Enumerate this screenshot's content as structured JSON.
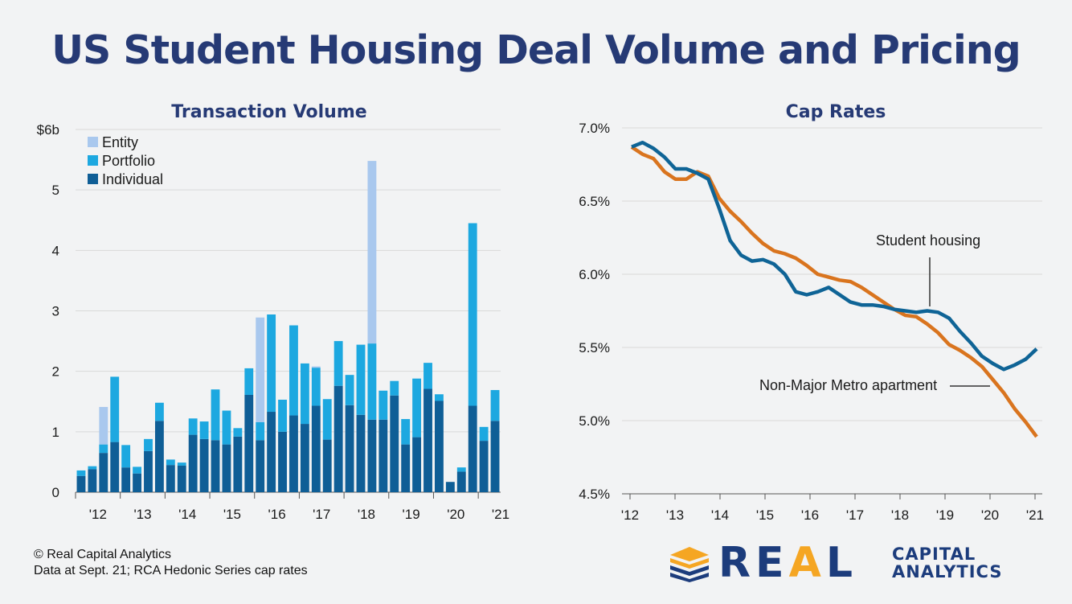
{
  "title": "US Student Housing Deal Volume and Pricing",
  "footer": {
    "line1": "© Real Capital Analytics",
    "line2": "Data at Sept. 21; RCA Hedonic Series cap rates"
  },
  "logo": {
    "word_a": "RE",
    "word_b": "A",
    "word_c": "L",
    "sub1": "CAPITAL",
    "sub2": "ANALYTICS"
  },
  "colors": {
    "entity": "#a9c8ee",
    "portfolio": "#1da8e0",
    "individual": "#0f5e96",
    "student": "#0f6496",
    "nonmajor": "#d9741e",
    "title": "#263a75",
    "grid": "#d9d9d9"
  },
  "chart_data": [
    {
      "type": "bar",
      "stacked": true,
      "title": "Transaction Volume",
      "y_tick_labels": [
        "0",
        "1",
        "2",
        "3",
        "4",
        "5",
        "$6b"
      ],
      "ylim": [
        0,
        6
      ],
      "x_tick_labels": [
        "'12",
        "'13",
        "'14",
        "'15",
        "'16",
        "'17",
        "'18",
        "'19",
        "'20",
        "'21"
      ],
      "legend_position": "top-left",
      "legend": [
        "Entity",
        "Portfolio",
        "Individual"
      ],
      "series": [
        {
          "name": "Individual",
          "values": [
            0.27,
            0.38,
            0.65,
            0.83,
            0.41,
            0.31,
            0.68,
            1.18,
            0.45,
            0.44,
            0.95,
            0.88,
            0.86,
            0.79,
            0.92,
            1.61,
            0.86,
            1.33,
            1.0,
            1.27,
            1.13,
            1.43,
            0.87,
            1.76,
            1.44,
            1.28,
            1.2,
            1.2,
            1.6,
            0.79,
            0.91,
            1.71,
            1.51,
            0.17,
            0.34,
            1.43,
            0.85,
            1.18
          ]
        },
        {
          "name": "Portfolio",
          "values": [
            0.09,
            0.05,
            0.14,
            1.08,
            0.37,
            0.11,
            0.2,
            0.3,
            0.09,
            0.05,
            0.27,
            0.29,
            0.84,
            0.56,
            0.14,
            0.44,
            0.3,
            1.61,
            0.53,
            1.49,
            1.0,
            0.63,
            0.67,
            0.74,
            0.5,
            1.16,
            1.26,
            0.48,
            0.24,
            0.42,
            0.97,
            0.43,
            0.11,
            0.0,
            0.07,
            3.02,
            0.23,
            0.51
          ]
        },
        {
          "name": "Entity",
          "values": [
            0,
            0,
            0.62,
            0,
            0,
            0,
            0,
            0,
            0,
            0,
            0,
            0,
            0,
            0,
            0,
            0,
            1.73,
            0,
            0,
            0,
            0,
            0.02,
            0,
            0,
            0,
            0,
            3.02,
            0,
            0,
            0,
            0,
            0,
            0,
            0,
            0,
            0,
            0,
            0
          ]
        }
      ]
    },
    {
      "type": "line",
      "title": "Cap Rates",
      "y_tick_labels": [
        "4.5%",
        "5.0%",
        "5.5%",
        "6.0%",
        "6.5%",
        "7.0%"
      ],
      "ylim": [
        4.5,
        7.0
      ],
      "x_tick_labels": [
        "'12",
        "'13",
        "'14",
        "'15",
        "'16",
        "'17",
        "'18",
        "'19",
        "'20",
        "'21"
      ],
      "series": [
        {
          "name": "Student housing",
          "values": [
            6.87,
            6.9,
            6.86,
            6.8,
            6.72,
            6.72,
            6.69,
            6.65,
            6.45,
            6.23,
            6.13,
            6.09,
            6.1,
            6.07,
            6.0,
            5.88,
            5.86,
            5.88,
            5.91,
            5.86,
            5.81,
            5.79,
            5.79,
            5.78,
            5.76,
            5.75,
            5.74,
            5.75,
            5.74,
            5.7,
            5.61,
            5.53,
            5.44,
            5.39,
            5.35,
            5.38,
            5.42,
            5.49
          ]
        },
        {
          "name": "Non-Major Metro apartment",
          "values": [
            6.87,
            6.82,
            6.79,
            6.7,
            6.65,
            6.65,
            6.7,
            6.67,
            6.52,
            6.43,
            6.36,
            6.28,
            6.21,
            6.16,
            6.14,
            6.11,
            6.06,
            6.0,
            5.98,
            5.96,
            5.95,
            5.91,
            5.86,
            5.81,
            5.76,
            5.72,
            5.71,
            5.66,
            5.6,
            5.52,
            5.48,
            5.43,
            5.37,
            5.28,
            5.19,
            5.08,
            4.99,
            4.89
          ]
        }
      ]
    }
  ]
}
